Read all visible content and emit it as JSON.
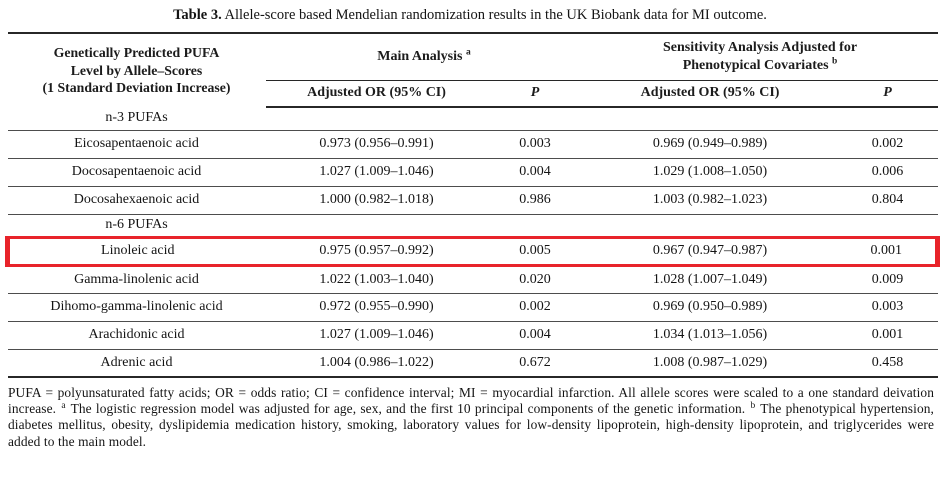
{
  "caption": {
    "label": "Table 3.",
    "text": "Allele-score based Mendelian randomization results in the UK Biobank data for MI outcome."
  },
  "highlight_color": "#e8232a",
  "table": {
    "header": {
      "col1_line1": "Genetically Predicted PUFA",
      "col1_line2": "Level by Allele–Scores",
      "col1_line3": "(1 Standard Deviation Increase)",
      "main_analysis": "Main Analysis",
      "main_analysis_sup": "a",
      "sensitivity_line1": "Sensitivity Analysis Adjusted for",
      "sensitivity_line2": "Phenotypical Covariates",
      "sensitivity_sup": "b",
      "or_label": "Adjusted OR (95% CI)",
      "p_label": "P"
    },
    "rows": [
      {
        "type": "section",
        "label": "n-3 PUFAs"
      },
      {
        "type": "data",
        "name": "Eicosapentaenoic acid",
        "main_or": "0.973 (0.956–0.991)",
        "main_p": "0.003",
        "sens_or": "0.969 (0.949–0.989)",
        "sens_p": "0.002"
      },
      {
        "type": "data",
        "name": "Docosapentaenoic acid",
        "main_or": "1.027 (1.009–1.046)",
        "main_p": "0.004",
        "sens_or": "1.029 (1.008–1.050)",
        "sens_p": "0.006"
      },
      {
        "type": "data",
        "name": "Docosahexaenoic acid",
        "main_or": "1.000 (0.982–1.018)",
        "main_p": "0.986",
        "sens_or": "1.003 (0.982–1.023)",
        "sens_p": "0.804"
      },
      {
        "type": "section",
        "label": "n-6 PUFAs"
      },
      {
        "type": "data",
        "highlighted": true,
        "name": "Linoleic acid",
        "main_or": "0.975 (0.957–0.992)",
        "main_p": "0.005",
        "sens_or": "0.967 (0.947–0.987)",
        "sens_p": "0.001"
      },
      {
        "type": "data",
        "name": "Gamma-linolenic acid",
        "main_or": "1.022 (1.003–1.040)",
        "main_p": "0.020",
        "sens_or": "1.028 (1.007–1.049)",
        "sens_p": "0.009"
      },
      {
        "type": "data",
        "name": "Dihomo-gamma-linolenic acid",
        "main_or": "0.972 (0.955–0.990)",
        "main_p": "0.002",
        "sens_or": "0.969 (0.950–0.989)",
        "sens_p": "0.003"
      },
      {
        "type": "data",
        "name": "Arachidonic acid",
        "main_or": "1.027 (1.009–1.046)",
        "main_p": "0.004",
        "sens_or": "1.034 (1.013–1.056)",
        "sens_p": "0.001"
      },
      {
        "type": "data",
        "name": "Adrenic acid",
        "main_or": "1.004 (0.986–1.022)",
        "main_p": "0.672",
        "sens_or": "1.008 (0.987–1.029)",
        "sens_p": "0.458"
      }
    ]
  },
  "footnote": {
    "part1": "PUFA = polyunsaturated fatty acids; OR = odds ratio; CI = confidence interval; MI = myocardial infarction. All allele scores were scaled to a one standard deivation increase.",
    "sup_a": "a",
    "part2": "The logistic regression model was adjusted for age, sex, and the first 10 principal components of the genetic information.",
    "sup_b": "b",
    "part3": "The phenotypical hypertension, diabetes mellitus, obesity, dyslipidemia medication history, smoking, laboratory values for low-density lipoprotein, high-density lipoprotein, and triglycerides were added to the main model."
  }
}
